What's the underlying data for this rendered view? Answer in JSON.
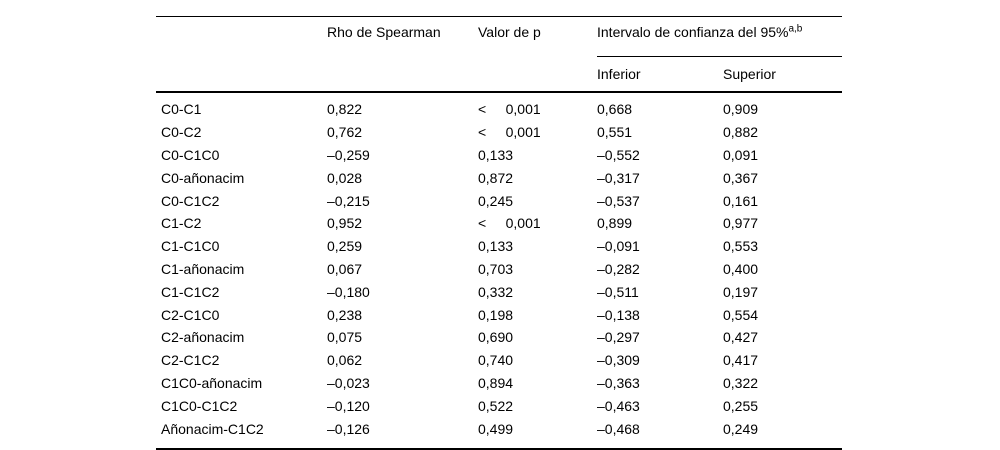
{
  "table": {
    "headers": {
      "rho": "Rho de Spearman",
      "p": "Valor de p",
      "ci_group": "Intervalo de confianza del 95%",
      "ci_superscript": "a,b",
      "ci_lower": "Inferior",
      "ci_upper": "Superior"
    },
    "rows": [
      {
        "label": "C0-C1",
        "rho": "0,822",
        "p": "<     0,001",
        "lower": "0,668",
        "upper": "0,909"
      },
      {
        "label": "C0-C2",
        "rho": "0,762",
        "p": "<     0,001",
        "lower": "0,551",
        "upper": "0,882"
      },
      {
        "label": "C0-C1C0",
        "rho": "–0,259",
        "p": "0,133",
        "lower": "–0,552",
        "upper": "0,091"
      },
      {
        "label": "C0-añonacim",
        "rho": "0,028",
        "p": "0,872",
        "lower": "–0,317",
        "upper": "0,367"
      },
      {
        "label": "C0-C1C2",
        "rho": "–0,215",
        "p": "0,245",
        "lower": "–0,537",
        "upper": "0,161"
      },
      {
        "label": "C1-C2",
        "rho": "0,952",
        "p": "<     0,001",
        "lower": "0,899",
        "upper": "0,977"
      },
      {
        "label": "C1-C1C0",
        "rho": "0,259",
        "p": "0,133",
        "lower": "–0,091",
        "upper": "0,553"
      },
      {
        "label": "C1-añonacim",
        "rho": "0,067",
        "p": "0,703",
        "lower": "–0,282",
        "upper": "0,400"
      },
      {
        "label": "C1-C1C2",
        "rho": "–0,180",
        "p": "0,332",
        "lower": "–0,511",
        "upper": "0,197"
      },
      {
        "label": "C2-C1C0",
        "rho": "0,238",
        "p": "0,198",
        "lower": "–0,138",
        "upper": "0,554"
      },
      {
        "label": "C2-añonacim",
        "rho": "0,075",
        "p": "0,690",
        "lower": "–0,297",
        "upper": "0,427"
      },
      {
        "label": "C2-C1C2",
        "rho": "0,062",
        "p": "0,740",
        "lower": "–0,309",
        "upper": "0,417"
      },
      {
        "label": "C1C0-añonacim",
        "rho": "–0,023",
        "p": "0,894",
        "lower": "–0,363",
        "upper": "0,322"
      },
      {
        "label": "C1C0-C1C2",
        "rho": "–0,120",
        "p": "0,522",
        "lower": "–0,463",
        "upper": "0,255"
      },
      {
        "label": "Añonacim-C1C2",
        "rho": "–0,126",
        "p": "0,499",
        "lower": "–0,468",
        "upper": "0,249"
      }
    ]
  }
}
